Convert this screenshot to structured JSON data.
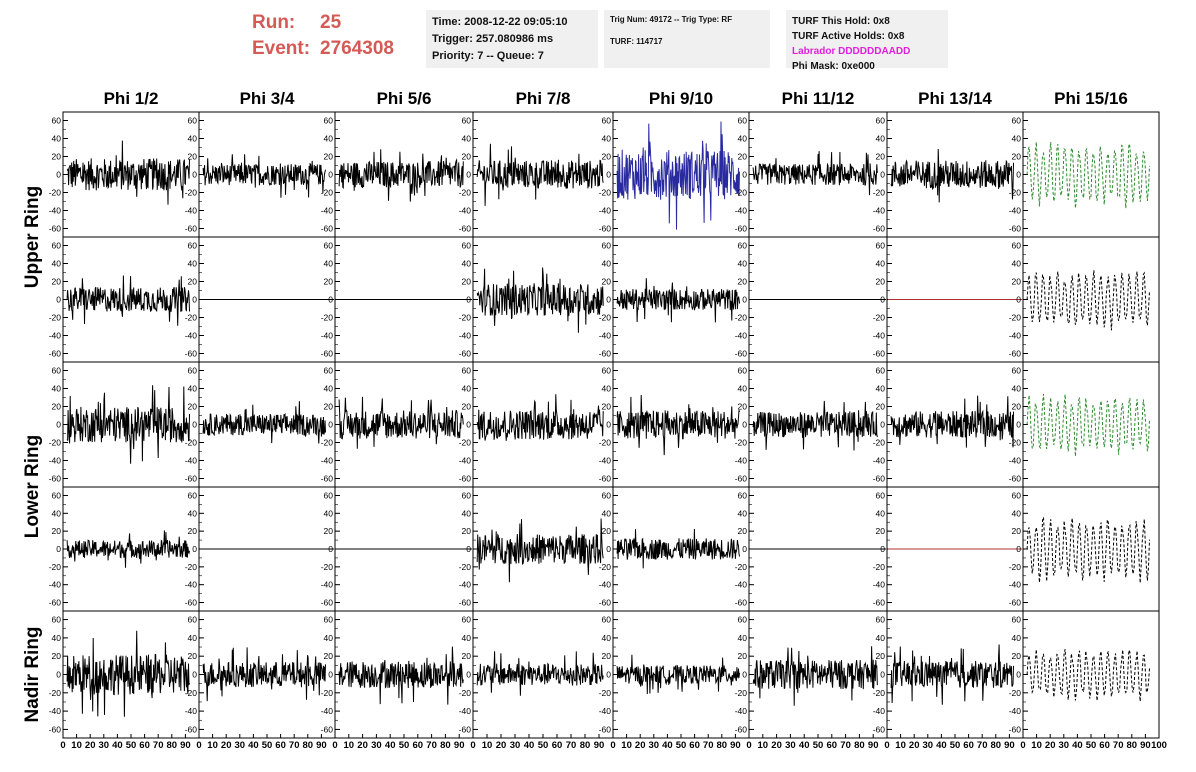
{
  "header": {
    "run_label": "Run:",
    "run_value": "25",
    "event_label": "Event:",
    "event_value": "2764308"
  },
  "info_time": {
    "line1": "Time: 2008-12-22 09:05:10",
    "line2": "Trigger: 257.080986 ms",
    "line3": "Priority: 7 -- Queue: 7"
  },
  "info_trig": {
    "line1": "Trig Num: 49172 -- Trig Type: RF",
    "line2": "TURF: 114717"
  },
  "info_turf": {
    "line1": "TURF This Hold: 0x8",
    "line2": "TURF Active Holds: 0x8",
    "line3": "Labrador DDDDDDAADD",
    "line4": "Phi Mask: 0xe000"
  },
  "chart_data": {
    "type": "line",
    "columns": [
      "Phi 1/2",
      "Phi 3/4",
      "Phi 5/6",
      "Phi 7/8",
      "Phi 9/10",
      "Phi 11/12",
      "Phi 13/14",
      "Phi 15/16"
    ],
    "rings": [
      "Upper Ring",
      "Lower Ring",
      "Nadir Ring"
    ],
    "xlim": [
      0,
      100
    ],
    "ylim": [
      -65,
      65
    ],
    "x_ticks": [
      "0",
      "10",
      "20",
      "30",
      "40",
      "50",
      "60",
      "70",
      "80",
      "90",
      "100"
    ],
    "y_ticks": [
      "-60",
      "-40",
      "-20",
      "0",
      "20",
      "40",
      "60"
    ],
    "colors": {
      "black": "#000000",
      "blue": "#2a2aa0",
      "green": "#2e8b2e",
      "red": "#b03030"
    },
    "rows": [
      {
        "ring": "Upper Ring",
        "panels": [
          {
            "type": "wave",
            "amp": 18,
            "color": "black"
          },
          {
            "type": "wave",
            "amp": 12,
            "color": "black"
          },
          {
            "type": "wave",
            "amp": 15,
            "color": "black"
          },
          {
            "type": "wave",
            "amp": 16,
            "color": "black"
          },
          {
            "type": "wave",
            "amp": 28,
            "color": "blue"
          },
          {
            "type": "wave",
            "amp": 12,
            "color": "black"
          },
          {
            "type": "wave",
            "amp": 16,
            "color": "black"
          },
          {
            "type": "dashed",
            "amp": 38,
            "color": "green"
          }
        ]
      },
      {
        "ring": "Upper Ring",
        "panels": [
          {
            "type": "wave",
            "amp": 14,
            "color": "black"
          },
          {
            "type": "flat",
            "color": "black"
          },
          {
            "type": "flat",
            "color": "black"
          },
          {
            "type": "wave",
            "amp": 18,
            "color": "black"
          },
          {
            "type": "wave",
            "amp": 12,
            "color": "black"
          },
          {
            "type": "flat",
            "color": "black"
          },
          {
            "type": "flat",
            "color": "red"
          },
          {
            "type": "dashed",
            "amp": 35,
            "color": "black"
          }
        ]
      },
      {
        "ring": "Lower Ring",
        "panels": [
          {
            "type": "wave",
            "amp": 20,
            "color": "black"
          },
          {
            "type": "wave",
            "amp": 12,
            "color": "black"
          },
          {
            "type": "wave",
            "amp": 16,
            "color": "black"
          },
          {
            "type": "wave",
            "amp": 17,
            "color": "black"
          },
          {
            "type": "wave",
            "amp": 16,
            "color": "black"
          },
          {
            "type": "wave",
            "amp": 14,
            "color": "black"
          },
          {
            "type": "wave",
            "amp": 15,
            "color": "black"
          },
          {
            "type": "dashed",
            "amp": 36,
            "color": "green"
          }
        ]
      },
      {
        "ring": "Lower Ring",
        "panels": [
          {
            "type": "wave",
            "amp": 10,
            "color": "black"
          },
          {
            "type": "flat",
            "color": "black"
          },
          {
            "type": "flat",
            "color": "black"
          },
          {
            "type": "wave",
            "amp": 17,
            "color": "black"
          },
          {
            "type": "wave",
            "amp": 12,
            "color": "black"
          },
          {
            "type": "flat",
            "color": "black"
          },
          {
            "type": "flat",
            "color": "red"
          },
          {
            "type": "dashed",
            "amp": 40,
            "color": "black"
          }
        ]
      },
      {
        "ring": "Nadir Ring",
        "panels": [
          {
            "type": "wave",
            "amp": 22,
            "color": "black"
          },
          {
            "type": "wave",
            "amp": 14,
            "color": "black"
          },
          {
            "type": "wave",
            "amp": 15,
            "color": "black"
          },
          {
            "type": "wave",
            "amp": 12,
            "color": "black"
          },
          {
            "type": "wave",
            "amp": 10,
            "color": "black"
          },
          {
            "type": "wave",
            "amp": 16,
            "color": "black"
          },
          {
            "type": "wave",
            "amp": 15,
            "color": "black"
          },
          {
            "type": "dashed",
            "amp": 30,
            "color": "black"
          }
        ]
      }
    ]
  }
}
